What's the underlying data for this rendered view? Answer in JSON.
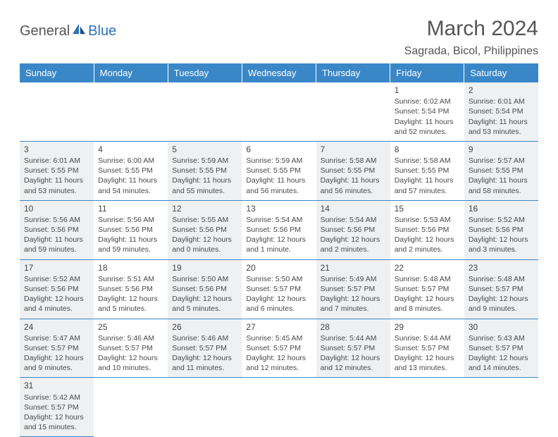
{
  "logo": {
    "general": "General",
    "blue": "Blue"
  },
  "header": {
    "month_title": "March 2024",
    "location": "Sagrada, Bicol, Philippines"
  },
  "colors": {
    "header_bg": "#3a87c8",
    "header_fg": "#ffffff",
    "shaded_cell": "#eef0f1",
    "cell_border": "#3a87c8",
    "text": "#4a4a4a",
    "logo_blue": "#2c72b8"
  },
  "dow": [
    "Sunday",
    "Monday",
    "Tuesday",
    "Wednesday",
    "Thursday",
    "Friday",
    "Saturday"
  ],
  "weeks": [
    [
      null,
      null,
      null,
      null,
      null,
      {
        "n": "1",
        "sr": "Sunrise: 6:02 AM",
        "ss": "Sunset: 5:54 PM",
        "d1": "Daylight: 11 hours",
        "d2": "and 52 minutes."
      },
      {
        "n": "2",
        "sr": "Sunrise: 6:01 AM",
        "ss": "Sunset: 5:54 PM",
        "d1": "Daylight: 11 hours",
        "d2": "and 53 minutes."
      }
    ],
    [
      {
        "n": "3",
        "sr": "Sunrise: 6:01 AM",
        "ss": "Sunset: 5:55 PM",
        "d1": "Daylight: 11 hours",
        "d2": "and 53 minutes."
      },
      {
        "n": "4",
        "sr": "Sunrise: 6:00 AM",
        "ss": "Sunset: 5:55 PM",
        "d1": "Daylight: 11 hours",
        "d2": "and 54 minutes."
      },
      {
        "n": "5",
        "sr": "Sunrise: 5:59 AM",
        "ss": "Sunset: 5:55 PM",
        "d1": "Daylight: 11 hours",
        "d2": "and 55 minutes."
      },
      {
        "n": "6",
        "sr": "Sunrise: 5:59 AM",
        "ss": "Sunset: 5:55 PM",
        "d1": "Daylight: 11 hours",
        "d2": "and 56 minutes."
      },
      {
        "n": "7",
        "sr": "Sunrise: 5:58 AM",
        "ss": "Sunset: 5:55 PM",
        "d1": "Daylight: 11 hours",
        "d2": "and 56 minutes."
      },
      {
        "n": "8",
        "sr": "Sunrise: 5:58 AM",
        "ss": "Sunset: 5:55 PM",
        "d1": "Daylight: 11 hours",
        "d2": "and 57 minutes."
      },
      {
        "n": "9",
        "sr": "Sunrise: 5:57 AM",
        "ss": "Sunset: 5:55 PM",
        "d1": "Daylight: 11 hours",
        "d2": "and 58 minutes."
      }
    ],
    [
      {
        "n": "10",
        "sr": "Sunrise: 5:56 AM",
        "ss": "Sunset: 5:56 PM",
        "d1": "Daylight: 11 hours",
        "d2": "and 59 minutes."
      },
      {
        "n": "11",
        "sr": "Sunrise: 5:56 AM",
        "ss": "Sunset: 5:56 PM",
        "d1": "Daylight: 11 hours",
        "d2": "and 59 minutes."
      },
      {
        "n": "12",
        "sr": "Sunrise: 5:55 AM",
        "ss": "Sunset: 5:56 PM",
        "d1": "Daylight: 12 hours",
        "d2": "and 0 minutes."
      },
      {
        "n": "13",
        "sr": "Sunrise: 5:54 AM",
        "ss": "Sunset: 5:56 PM",
        "d1": "Daylight: 12 hours",
        "d2": "and 1 minute."
      },
      {
        "n": "14",
        "sr": "Sunrise: 5:54 AM",
        "ss": "Sunset: 5:56 PM",
        "d1": "Daylight: 12 hours",
        "d2": "and 2 minutes."
      },
      {
        "n": "15",
        "sr": "Sunrise: 5:53 AM",
        "ss": "Sunset: 5:56 PM",
        "d1": "Daylight: 12 hours",
        "d2": "and 2 minutes."
      },
      {
        "n": "16",
        "sr": "Sunrise: 5:52 AM",
        "ss": "Sunset: 5:56 PM",
        "d1": "Daylight: 12 hours",
        "d2": "and 3 minutes."
      }
    ],
    [
      {
        "n": "17",
        "sr": "Sunrise: 5:52 AM",
        "ss": "Sunset: 5:56 PM",
        "d1": "Daylight: 12 hours",
        "d2": "and 4 minutes."
      },
      {
        "n": "18",
        "sr": "Sunrise: 5:51 AM",
        "ss": "Sunset: 5:56 PM",
        "d1": "Daylight: 12 hours",
        "d2": "and 5 minutes."
      },
      {
        "n": "19",
        "sr": "Sunrise: 5:50 AM",
        "ss": "Sunset: 5:56 PM",
        "d1": "Daylight: 12 hours",
        "d2": "and 5 minutes."
      },
      {
        "n": "20",
        "sr": "Sunrise: 5:50 AM",
        "ss": "Sunset: 5:57 PM",
        "d1": "Daylight: 12 hours",
        "d2": "and 6 minutes."
      },
      {
        "n": "21",
        "sr": "Sunrise: 5:49 AM",
        "ss": "Sunset: 5:57 PM",
        "d1": "Daylight: 12 hours",
        "d2": "and 7 minutes."
      },
      {
        "n": "22",
        "sr": "Sunrise: 5:48 AM",
        "ss": "Sunset: 5:57 PM",
        "d1": "Daylight: 12 hours",
        "d2": "and 8 minutes."
      },
      {
        "n": "23",
        "sr": "Sunrise: 5:48 AM",
        "ss": "Sunset: 5:57 PM",
        "d1": "Daylight: 12 hours",
        "d2": "and 9 minutes."
      }
    ],
    [
      {
        "n": "24",
        "sr": "Sunrise: 5:47 AM",
        "ss": "Sunset: 5:57 PM",
        "d1": "Daylight: 12 hours",
        "d2": "and 9 minutes."
      },
      {
        "n": "25",
        "sr": "Sunrise: 5:46 AM",
        "ss": "Sunset: 5:57 PM",
        "d1": "Daylight: 12 hours",
        "d2": "and 10 minutes."
      },
      {
        "n": "26",
        "sr": "Sunrise: 5:46 AM",
        "ss": "Sunset: 5:57 PM",
        "d1": "Daylight: 12 hours",
        "d2": "and 11 minutes."
      },
      {
        "n": "27",
        "sr": "Sunrise: 5:45 AM",
        "ss": "Sunset: 5:57 PM",
        "d1": "Daylight: 12 hours",
        "d2": "and 12 minutes."
      },
      {
        "n": "28",
        "sr": "Sunrise: 5:44 AM",
        "ss": "Sunset: 5:57 PM",
        "d1": "Daylight: 12 hours",
        "d2": "and 12 minutes."
      },
      {
        "n": "29",
        "sr": "Sunrise: 5:44 AM",
        "ss": "Sunset: 5:57 PM",
        "d1": "Daylight: 12 hours",
        "d2": "and 13 minutes."
      },
      {
        "n": "30",
        "sr": "Sunrise: 5:43 AM",
        "ss": "Sunset: 5:57 PM",
        "d1": "Daylight: 12 hours",
        "d2": "and 14 minutes."
      }
    ],
    [
      {
        "n": "31",
        "sr": "Sunrise: 5:42 AM",
        "ss": "Sunset: 5:57 PM",
        "d1": "Daylight: 12 hours",
        "d2": "and 15 minutes."
      },
      null,
      null,
      null,
      null,
      null,
      null
    ]
  ]
}
